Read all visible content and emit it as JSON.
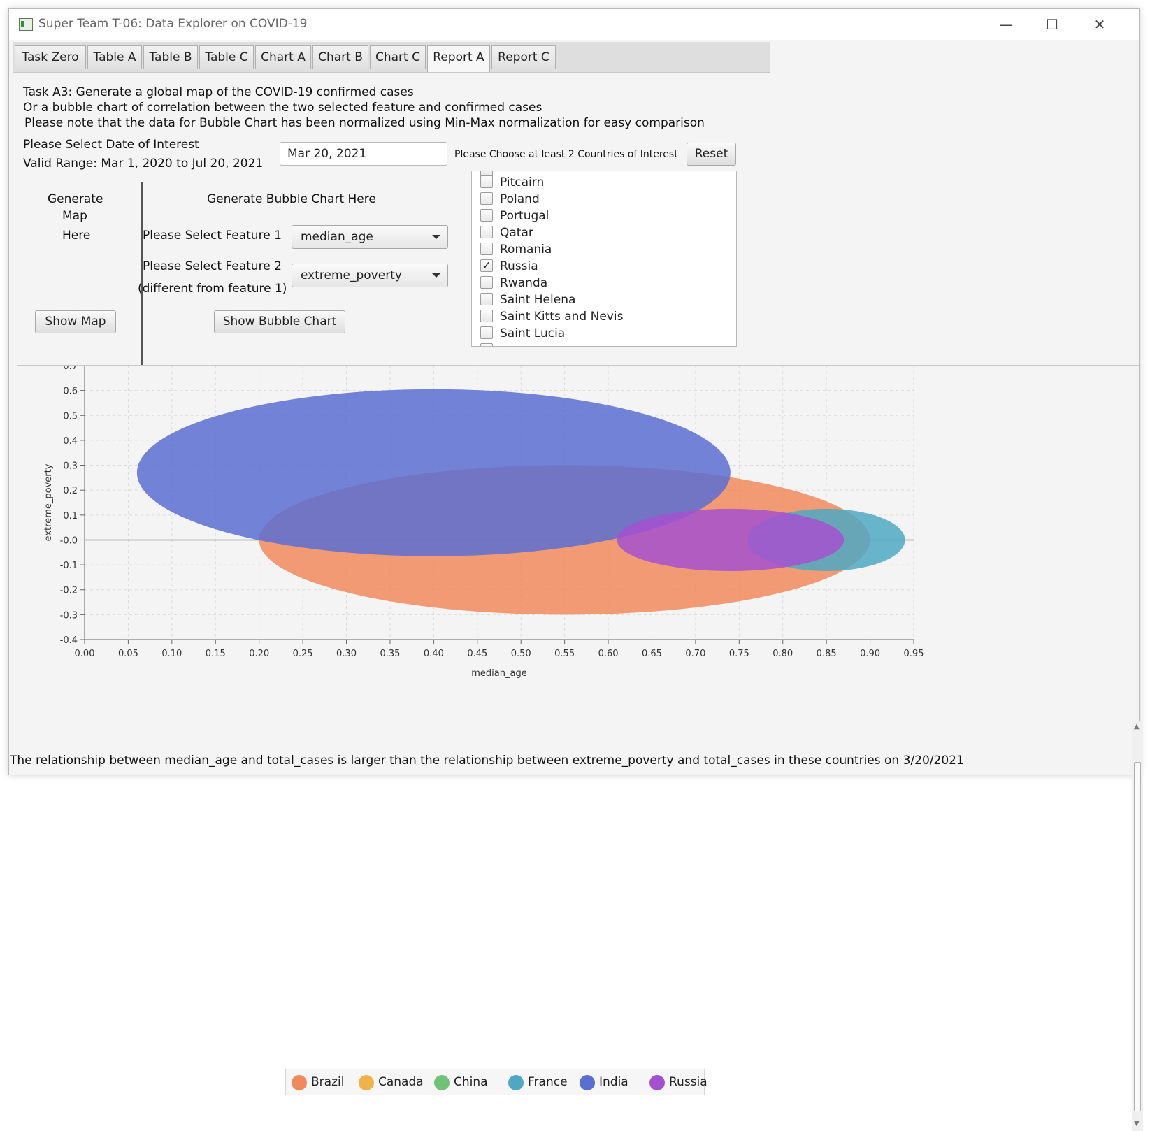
{
  "window": {
    "title": "Super Team T-06: Data Explorer on COVID-19",
    "controls": {
      "minimize": "—",
      "maximize": "☐",
      "close": "✕"
    }
  },
  "tabs": [
    {
      "label": "Task Zero",
      "selected": false
    },
    {
      "label": "Table A",
      "selected": false
    },
    {
      "label": "Table B",
      "selected": false
    },
    {
      "label": "Table C",
      "selected": false
    },
    {
      "label": "Chart A",
      "selected": false
    },
    {
      "label": "Chart B",
      "selected": false
    },
    {
      "label": "Chart C",
      "selected": false
    },
    {
      "label": "Report A",
      "selected": true
    },
    {
      "label": "Report C",
      "selected": false
    }
  ],
  "task": {
    "line1": "Task A3: Generate a global map of the COVID-19 confirmed cases",
    "line2": "Or a bubble chart of correlation between the two selected feature and confirmed cases",
    "line3": "Please note that the data for Bubble Chart has been normalized using Min-Max normalization for easy comparison"
  },
  "date": {
    "label": "Please Select Date of Interest",
    "range": "Valid Range: Mar 1, 2020 to Jul 20, 2021",
    "value": "Mar 20, 2021"
  },
  "countries": {
    "label": "Please Choose at least 2 Countries of Interest",
    "reset_label": "Reset",
    "items": [
      {
        "name": "Pitcairn",
        "checked": false
      },
      {
        "name": "Poland",
        "checked": false
      },
      {
        "name": "Portugal",
        "checked": false
      },
      {
        "name": "Qatar",
        "checked": false
      },
      {
        "name": "Romania",
        "checked": false
      },
      {
        "name": "Russia",
        "checked": true
      },
      {
        "name": "Rwanda",
        "checked": false
      },
      {
        "name": "Saint Helena",
        "checked": false
      },
      {
        "name": "Saint Kitts and Nevis",
        "checked": false
      },
      {
        "name": "Saint Lucia",
        "checked": false
      }
    ]
  },
  "map_panel": {
    "line1": "Generate",
    "line2": "Map",
    "line3": "Here",
    "button": "Show Map"
  },
  "bubble_panel": {
    "title": "Generate Bubble Chart Here",
    "feature1_label": "Please Select Feature 1",
    "feature1_value": "median_age",
    "feature2_label": "Please Select Feature 2",
    "feature2_note": "(different from feature 1)",
    "feature2_value": "extreme_poverty",
    "button": "Show Bubble Chart"
  },
  "chart_data": {
    "type": "bubble",
    "xlabel": "median_age",
    "ylabel": "extreme_poverty",
    "xlim": [
      0.0,
      0.95
    ],
    "ylim": [
      -0.4,
      0.7
    ],
    "x_ticks": [
      "0.00",
      "0.05",
      "0.10",
      "0.15",
      "0.20",
      "0.25",
      "0.30",
      "0.35",
      "0.40",
      "0.45",
      "0.50",
      "0.55",
      "0.60",
      "0.65",
      "0.70",
      "0.75",
      "0.80",
      "0.85",
      "0.90",
      "0.95"
    ],
    "y_ticks": [
      "0.7",
      "0.6",
      "0.5",
      "0.4",
      "0.3",
      "0.2",
      "0.1",
      "-0.0",
      "-0.1",
      "-0.2",
      "-0.3",
      "-0.4"
    ],
    "grid": true,
    "legend_position": "bottom",
    "series": [
      {
        "name": "Brazil",
        "color": "#f08a5d",
        "x": 0.55,
        "y": 0.0,
        "rx": 0.35,
        "ry": 0.3
      },
      {
        "name": "Canada",
        "color": "#f0b347",
        "x": null,
        "y": null,
        "rx": 0,
        "ry": 0
      },
      {
        "name": "China",
        "color": "#6fc276",
        "x": null,
        "y": null,
        "rx": 0,
        "ry": 0
      },
      {
        "name": "France",
        "color": "#4fa8c2",
        "x": 0.85,
        "y": 0.0,
        "rx": 0.09,
        "ry": 0.125
      },
      {
        "name": "India",
        "color": "#5b6ed1",
        "x": 0.4,
        "y": 0.27,
        "rx": 0.34,
        "ry": 0.335
      },
      {
        "name": "Russia",
        "color": "#a451cf",
        "x": 0.74,
        "y": 0.0,
        "rx": 0.13,
        "ry": 0.125
      }
    ]
  },
  "conclusion": "The relationship between median_age and total_cases is larger than the relationship between extreme_poverty and total_cases in these countries on 3/20/2021"
}
